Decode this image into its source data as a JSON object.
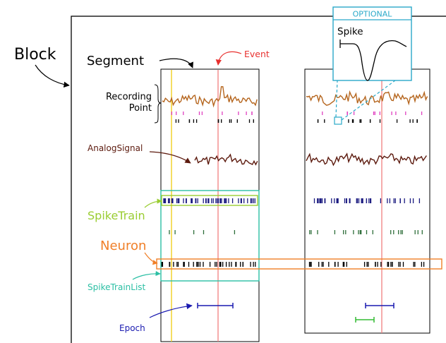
{
  "labels": {
    "block": "Block",
    "segment": "Segment",
    "event": "Event",
    "recording_point_line1": "Recording",
    "recording_point_line2": "Point",
    "analog_signal": "AnalogSignal",
    "spike_train": "SpikeTrain",
    "neuron": "Neuron",
    "spike_train_list": "SpikeTrainList",
    "epoch": "Epoch",
    "optional": "OPTIONAL",
    "spike": "Spike"
  },
  "colors": {
    "ink": "#000000",
    "event": "#e8312f",
    "event_line": "#f08080",
    "recording_trace": "#b5651d",
    "analog_trace": "#5c1a0e",
    "spike_train": "#9acd32",
    "spike_train_ticks": "#1a1a80",
    "mid_ticks": "#2e6e3a",
    "neuron": "#f07f28",
    "spike_train_list": "#2bbfa4",
    "epoch": "#1a1ab0",
    "epoch_green": "#33bb33",
    "optional": "#2aa9c9",
    "magenta_ticks": "#e040c0",
    "yellow_line": "#f2d22e"
  }
}
